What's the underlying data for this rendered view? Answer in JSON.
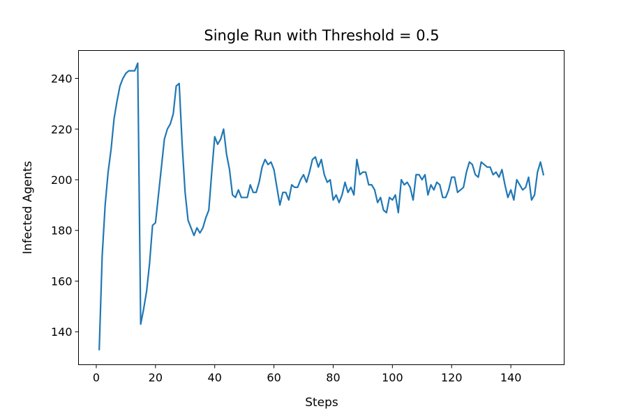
{
  "chart_data": {
    "type": "line",
    "title": "Single Run with Threshold = 0.5",
    "xlabel": "Steps",
    "ylabel": "Infected Agents",
    "xlim": [
      -6,
      158
    ],
    "ylim": [
      127,
      251
    ],
    "xticks": [
      0,
      20,
      40,
      60,
      80,
      100,
      120,
      140
    ],
    "yticks": [
      140,
      160,
      180,
      200,
      220,
      240
    ],
    "grid": false,
    "line_color": "#1f77b4",
    "series": [
      {
        "x": [
          1,
          2,
          3,
          4,
          5,
          6,
          7,
          8,
          9,
          10,
          11,
          12,
          13,
          14,
          15,
          16,
          17,
          18,
          19,
          20,
          21,
          22,
          23,
          24,
          25,
          26,
          27,
          28,
          29,
          30,
          31,
          32,
          33,
          34,
          35,
          36,
          37,
          38,
          39,
          40,
          41,
          42,
          43,
          44,
          45,
          46,
          47,
          48,
          49,
          50,
          51,
          52,
          53,
          54,
          55,
          56,
          57,
          58,
          59,
          60,
          61,
          62,
          63,
          64,
          65,
          66,
          67,
          68,
          69,
          70,
          71,
          72,
          73,
          74,
          75,
          76,
          77,
          78,
          79,
          80,
          81,
          82,
          83,
          84,
          85,
          86,
          87,
          88,
          89,
          90,
          91,
          92,
          93,
          94,
          95,
          96,
          97,
          98,
          99,
          100,
          101,
          102,
          103,
          104,
          105,
          106,
          107,
          108,
          109,
          110,
          111,
          112,
          113,
          114,
          115,
          116,
          117,
          118,
          119,
          120,
          121,
          122,
          123,
          124,
          125,
          126,
          127,
          128,
          129,
          130,
          131,
          132,
          133,
          134,
          135,
          136,
          137,
          138,
          139,
          140,
          141,
          142,
          143,
          144,
          145,
          146,
          147,
          148,
          149,
          150,
          151
        ],
        "values": [
          133,
          170,
          190,
          203,
          212,
          224,
          231,
          237,
          240,
          242,
          243,
          243,
          243,
          246,
          143,
          149,
          156,
          167,
          182,
          183,
          194,
          205,
          216,
          220,
          222,
          226,
          237,
          238,
          214,
          195,
          184,
          181,
          178,
          181,
          179,
          181,
          185,
          188,
          203,
          217,
          214,
          216,
          220,
          210,
          204,
          194,
          193,
          196,
          193,
          193,
          193,
          198,
          195,
          195,
          199,
          205,
          208,
          206,
          207,
          204,
          197,
          190,
          195,
          195,
          192,
          198,
          197,
          197,
          200,
          202,
          199,
          203,
          208,
          209,
          205,
          208,
          202,
          199,
          200,
          192,
          194,
          191,
          194,
          199,
          195,
          197,
          194,
          208,
          202,
          203,
          203,
          198,
          198,
          196,
          191,
          193,
          188,
          187,
          193,
          192,
          194,
          187,
          200,
          198,
          199,
          197,
          192,
          202,
          202,
          200,
          202,
          194,
          198,
          196,
          199,
          198,
          193,
          193,
          196,
          201,
          201,
          195,
          196,
          197,
          203,
          207,
          206,
          202,
          201,
          207,
          206,
          205,
          205,
          202,
          203,
          201,
          204,
          198,
          193,
          196,
          192,
          200,
          198,
          196,
          197,
          201,
          192,
          194,
          203,
          207,
          202
        ]
      }
    ]
  }
}
